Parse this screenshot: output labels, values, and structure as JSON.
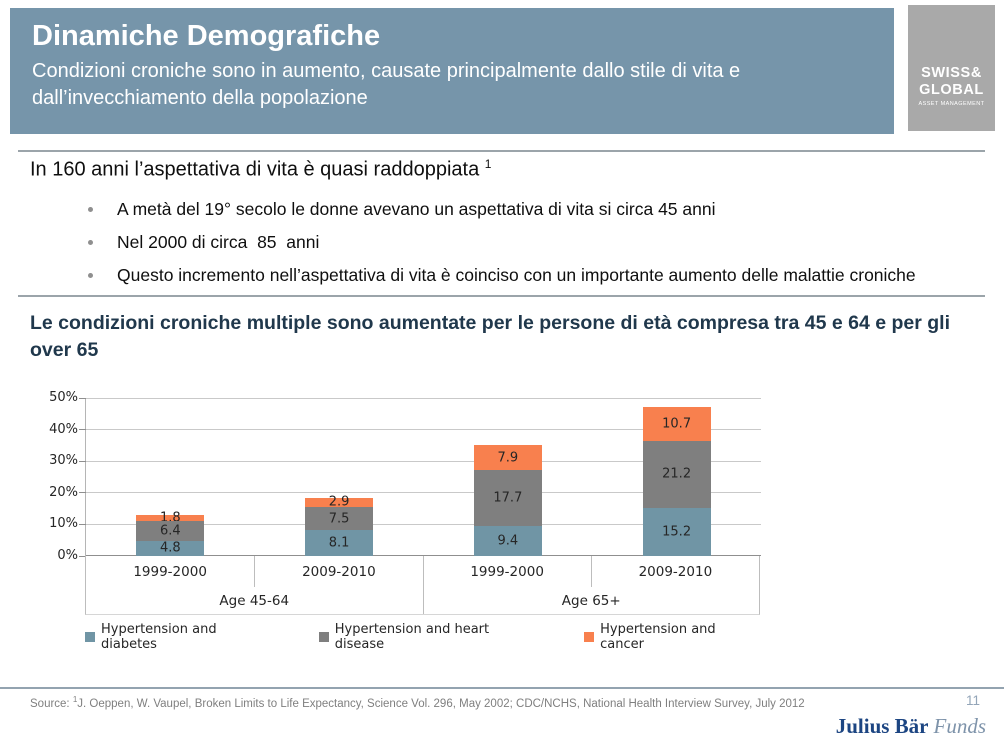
{
  "header": {
    "title": "Dinamiche Demografiche",
    "subtitle": "Condizioni croniche sono in aumento, causate principalmente dallo stile di vita e dall’invecchiamento della popolazione",
    "bg_color": "#7695aa"
  },
  "logo": {
    "line1": "SWISS&",
    "line2": "GLOBAL",
    "line3": "ASSET MANAGEMENT",
    "bg_color": "#a9a9a9"
  },
  "lead": {
    "heading": "In 160 anni l’aspettativa di vita è quasi raddoppiata ",
    "heading_superscript": "1",
    "bullets": [
      "A metà del 19° secolo le donne avevano un aspettativa di vita si circa 45 anni",
      "Nel 2000 di circa  85  anni",
      "Questo incremento nell’aspettativa di vita è coinciso con un importante aumento delle malattie croniche"
    ]
  },
  "chart_section": {
    "title": "Le condizioni croniche multiple sono aumentate per le persone di età compresa tra 45 e 64 e per gli over 65"
  },
  "chart_data": {
    "type": "bar",
    "stacked": true,
    "categories": [
      "1999-2000",
      "2009-2010",
      "1999-2000",
      "2009-2010"
    ],
    "group_labels": [
      "Age 45-64",
      "Age 65+"
    ],
    "series": [
      {
        "name": "Hypertension and diabetes",
        "color": "#7095a5",
        "values": [
          4.8,
          8.1,
          9.4,
          15.2
        ]
      },
      {
        "name": "Hypertension and heart disease",
        "color": "#7f7f7f",
        "values": [
          6.4,
          7.5,
          17.7,
          21.2
        ]
      },
      {
        "name": "Hypertension and cancer",
        "color": "#f8804e",
        "values": [
          1.8,
          2.9,
          7.9,
          10.7
        ]
      }
    ],
    "y_ticks": [
      0,
      10,
      20,
      30,
      40,
      50
    ],
    "y_tick_suffix": "%",
    "ylim": [
      0,
      50
    ],
    "grid": true,
    "legend_position": "bottom"
  },
  "footer": {
    "source_prefix": "Source: ",
    "source_superscript": "1",
    "source_text": "J. Oeppen, W. Vaupel, Broken Limits to Life Expectancy, Science Vol. 296, May 2002; CDC/NCHS, National Health Interview Survey, July 2012",
    "page_number": "11",
    "brand": "Julius Bär",
    "brand_suffix": "Funds"
  }
}
